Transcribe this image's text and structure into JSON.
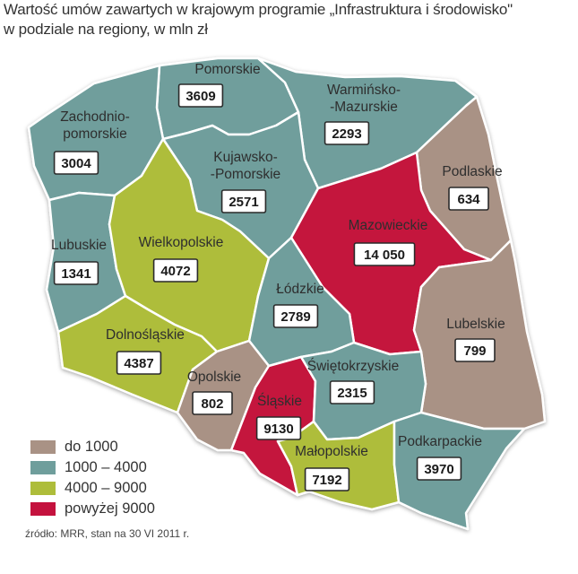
{
  "title": {
    "line1": "Wartość umów zawartych w krajowym programie „Infrastruktura i środowisko\"",
    "line2": "w podziale na regiony, w mln zł"
  },
  "colors": {
    "do_1000": "#a99285",
    "1000_4000": "#6f9e9c",
    "4000_9000": "#aebd3a",
    "powyzej_9000": "#c4123e",
    "border": "#ffffff",
    "label_box": "#ffffff"
  },
  "regions": [
    {
      "id": "pomorskie",
      "name_lines": [
        "Pomorskie"
      ],
      "value": "3609",
      "category": "1000_4000"
    },
    {
      "id": "zachodniopomorskie",
      "name_lines": [
        "Zachodnio-",
        "pomorskie"
      ],
      "value": "3004",
      "category": "1000_4000"
    },
    {
      "id": "warminsko-mazurskie",
      "name_lines": [
        "Warmińsko-",
        "-Mazurskie"
      ],
      "value": "2293",
      "category": "1000_4000"
    },
    {
      "id": "kujawsko-pomorskie",
      "name_lines": [
        "Kujawsko-",
        "-Pomorskie"
      ],
      "value": "2571",
      "category": "1000_4000"
    },
    {
      "id": "podlaskie",
      "name_lines": [
        "Podlaskie"
      ],
      "value": "634",
      "category": "do_1000"
    },
    {
      "id": "mazowieckie",
      "name_lines": [
        "Mazowieckie"
      ],
      "value": "14 050",
      "category": "powyzej_9000"
    },
    {
      "id": "lubuskie",
      "name_lines": [
        "Lubuskie"
      ],
      "value": "1341",
      "category": "1000_4000"
    },
    {
      "id": "wielkopolskie",
      "name_lines": [
        "Wielkopolskie"
      ],
      "value": "4072",
      "category": "4000_9000"
    },
    {
      "id": "lodzkie",
      "name_lines": [
        "Łódzkie"
      ],
      "value": "2789",
      "category": "1000_4000"
    },
    {
      "id": "lubelskie",
      "name_lines": [
        "Lubelskie"
      ],
      "value": "799",
      "category": "do_1000"
    },
    {
      "id": "dolnoslaskie",
      "name_lines": [
        "Dolnośląskie"
      ],
      "value": "4387",
      "category": "4000_9000"
    },
    {
      "id": "opolskie",
      "name_lines": [
        "Opolskie"
      ],
      "value": "802",
      "category": "do_1000"
    },
    {
      "id": "slaskie",
      "name_lines": [
        "Śląskie"
      ],
      "value": "9130",
      "category": "powyzej_9000"
    },
    {
      "id": "swietokrzyskie",
      "name_lines": [
        "Świętokrzyskie"
      ],
      "value": "2315",
      "category": "1000_4000"
    },
    {
      "id": "malopolskie",
      "name_lines": [
        "Małopolskie"
      ],
      "value": "7192",
      "category": "4000_9000"
    },
    {
      "id": "podkarpackie",
      "name_lines": [
        "Podkarpackie"
      ],
      "value": "3970",
      "category": "1000_4000"
    }
  ],
  "legend": [
    {
      "label": "do 1000",
      "category": "do_1000"
    },
    {
      "label": "1000 – 4000",
      "category": "1000_4000"
    },
    {
      "label": "4000 – 9000",
      "category": "4000_9000"
    },
    {
      "label": "powyżej 9000",
      "category": "powyzej_9000"
    }
  ],
  "source": "źródło: MRR, stan na 30 VI 2011 r."
}
